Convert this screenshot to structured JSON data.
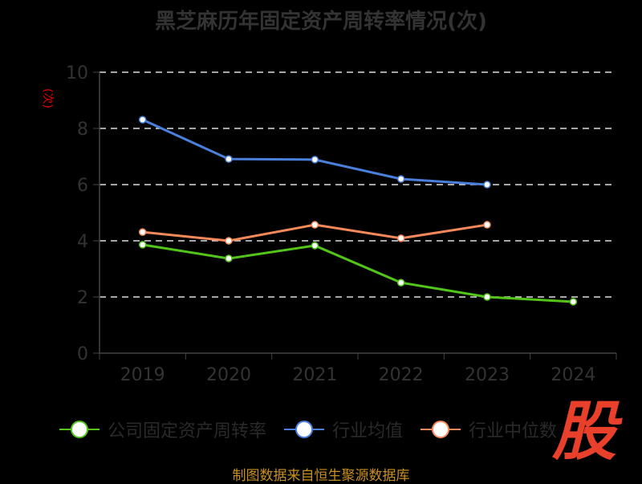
{
  "chart_data": {
    "type": "line",
    "title": "黑芝麻历年固定资产周转率情况(次)",
    "ylabel": "(次)",
    "categories": [
      "2019",
      "2020",
      "2021",
      "2022",
      "2023",
      "2024"
    ],
    "ylim": [
      0,
      10
    ],
    "yticks": [
      0,
      2,
      4,
      6,
      8,
      10
    ],
    "grid": true,
    "legend_position": "bottom",
    "series": [
      {
        "name": "公司固定资产周转率",
        "color": "#52c41a",
        "values": [
          3.86,
          3.37,
          3.83,
          2.51,
          2.0,
          1.83
        ]
      },
      {
        "name": "行业均值",
        "color": "#4a7fdc",
        "values": [
          8.31,
          6.91,
          6.89,
          6.2,
          6.0,
          null
        ]
      },
      {
        "name": "行业中位数",
        "color": "#f5895a",
        "values": [
          4.31,
          4.0,
          4.57,
          4.09,
          4.57,
          null
        ]
      }
    ]
  },
  "source": "制图数据来自恒生聚源数据库",
  "logo": "股"
}
